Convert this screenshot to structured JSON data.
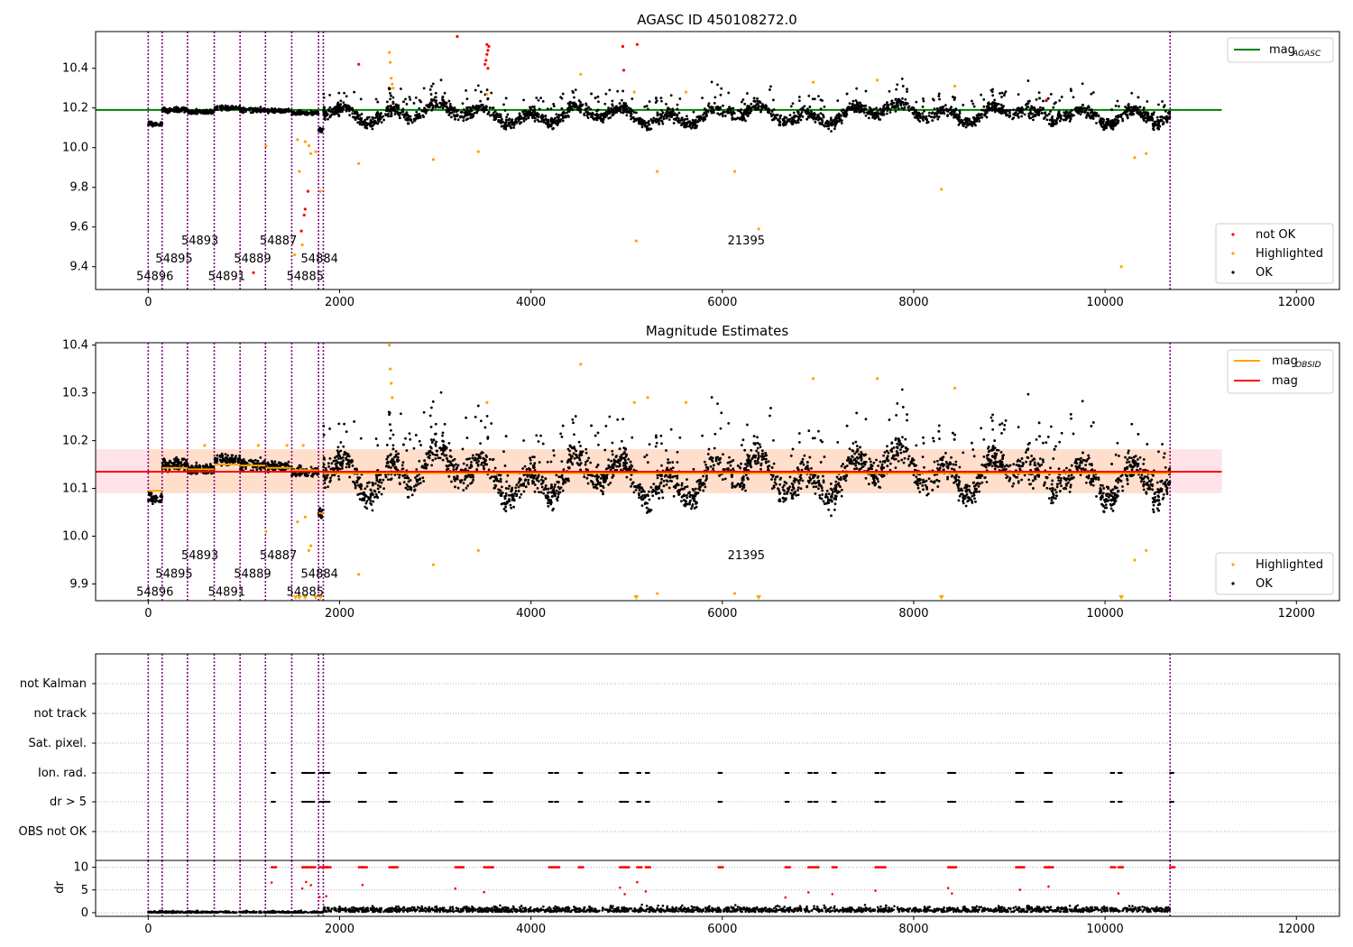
{
  "chart_data": [
    {
      "type": "scatter",
      "title": "AGASC ID 450108272.0",
      "xlim": [
        -550,
        12450
      ],
      "ylim": [
        9.285,
        10.585
      ],
      "xticks": [
        0,
        2000,
        4000,
        6000,
        8000,
        10000,
        12000
      ],
      "yticks": [
        9.4,
        9.6,
        9.8,
        10.0,
        10.2,
        10.4
      ],
      "hlines": [
        {
          "name": "mag_AGASC",
          "y": 10.19,
          "x_end": 11220,
          "color": "#008000"
        }
      ],
      "obs_boundaries": [
        0,
        145,
        410,
        690,
        960,
        1225,
        1500,
        1780,
        1830,
        10680
      ],
      "obsid_labels": [
        {
          "text": "54896",
          "x": 70,
          "y": 9.35
        },
        {
          "text": "54895",
          "x": 270,
          "y": 9.44
        },
        {
          "text": "54893",
          "x": 540,
          "y": 9.53
        },
        {
          "text": "54891",
          "x": 820,
          "y": 9.35
        },
        {
          "text": "54889",
          "x": 1090,
          "y": 9.44
        },
        {
          "text": "54887",
          "x": 1360,
          "y": 9.53
        },
        {
          "text": "54885",
          "x": 1640,
          "y": 9.35
        },
        {
          "text": "54884",
          "x": 1790,
          "y": 9.44
        },
        {
          "text": "21395",
          "x": 6250,
          "y": 9.53
        }
      ],
      "not_ok_points": [
        [
          1100,
          9.37
        ],
        [
          1600,
          9.58
        ],
        [
          1630,
          9.66
        ],
        [
          1640,
          9.69
        ],
        [
          1670,
          9.78
        ],
        [
          2200,
          10.42
        ],
        [
          3230,
          10.56
        ],
        [
          3520,
          10.42
        ],
        [
          3530,
          10.44
        ],
        [
          3540,
          10.47
        ],
        [
          3550,
          10.49
        ],
        [
          3560,
          10.51
        ],
        [
          3540,
          10.52
        ],
        [
          3550,
          10.4
        ],
        [
          4960,
          10.51
        ],
        [
          4970,
          10.39
        ],
        [
          5110,
          10.52
        ],
        [
          9390,
          10.24
        ]
      ],
      "highlighted_points": [
        [
          1230,
          10.01
        ],
        [
          1530,
          9.46
        ],
        [
          1560,
          10.04
        ],
        [
          1580,
          9.88
        ],
        [
          1610,
          9.51
        ],
        [
          1640,
          10.03
        ],
        [
          1680,
          10.01
        ],
        [
          1700,
          9.97
        ],
        [
          1750,
          9.98
        ],
        [
          1800,
          9.78
        ],
        [
          2200,
          9.92
        ],
        [
          2520,
          10.48
        ],
        [
          2530,
          10.43
        ],
        [
          2540,
          10.35
        ],
        [
          2550,
          10.32
        ],
        [
          2560,
          10.3
        ],
        [
          2980,
          9.94
        ],
        [
          3450,
          9.98
        ],
        [
          3540,
          10.27
        ],
        [
          4520,
          10.37
        ],
        [
          5100,
          9.53
        ],
        [
          5080,
          10.28
        ],
        [
          5320,
          9.88
        ],
        [
          5620,
          10.28
        ],
        [
          6130,
          9.88
        ],
        [
          6380,
          9.59
        ],
        [
          6950,
          10.33
        ],
        [
          7620,
          10.34
        ],
        [
          8290,
          9.79
        ],
        [
          8430,
          10.31
        ],
        [
          10170,
          9.4
        ],
        [
          10310,
          9.95
        ],
        [
          10430,
          9.97
        ]
      ],
      "ok_points": "generated",
      "legend_lines": [
        "mag_AGASC"
      ],
      "legend_points": [
        "not OK",
        "Highlighted",
        "OK"
      ],
      "colors": {
        "ok": "#000000",
        "highlighted": "#ffa500",
        "not_ok": "#ff0000",
        "line": "#008000",
        "boundary": "#800080"
      }
    },
    {
      "type": "scatter",
      "title": "Magnitude Estimates",
      "xlim": [
        -550,
        12450
      ],
      "ylim": [
        9.865,
        10.405
      ],
      "xticks": [
        0,
        2000,
        4000,
        6000,
        8000,
        10000,
        12000
      ],
      "yticks": [
        9.9,
        10.0,
        10.1,
        10.2,
        10.3,
        10.4
      ],
      "hlines": [
        {
          "name": "mag",
          "y": 10.135,
          "x_end": 11220,
          "color": "#ff0000"
        }
      ],
      "bands": [
        {
          "y0": 10.09,
          "y1": 10.182,
          "color": "#ffc0cb"
        },
        {
          "y0": 10.09,
          "y1": 10.182,
          "color": "#ffdab9"
        }
      ],
      "obs_mags": [
        {
          "x0": 0,
          "x1": 145,
          "y": 10.095
        },
        {
          "x0": 145,
          "x1": 410,
          "y": 10.143
        },
        {
          "x0": 410,
          "x1": 690,
          "y": 10.14
        },
        {
          "x0": 690,
          "x1": 960,
          "y": 10.15
        },
        {
          "x0": 960,
          "x1": 1225,
          "y": 10.148
        },
        {
          "x0": 1225,
          "x1": 1500,
          "y": 10.143
        },
        {
          "x0": 1500,
          "x1": 1780,
          "y": 10.138
        },
        {
          "x0": 1780,
          "x1": 1830,
          "y": 10.048
        },
        {
          "x0": 1830,
          "x1": 10680,
          "y": 10.132
        }
      ],
      "obs_boundaries": [
        0,
        145,
        410,
        690,
        960,
        1225,
        1500,
        1780,
        1830,
        10680
      ],
      "obsid_labels": [
        {
          "text": "54896",
          "x": 70,
          "y": 9.883
        },
        {
          "text": "54895",
          "x": 270,
          "y": 9.921
        },
        {
          "text": "54893",
          "x": 540,
          "y": 9.959
        },
        {
          "text": "54891",
          "x": 820,
          "y": 9.883
        },
        {
          "text": "54889",
          "x": 1090,
          "y": 9.921
        },
        {
          "text": "54887",
          "x": 1360,
          "y": 9.959
        },
        {
          "text": "54885",
          "x": 1640,
          "y": 9.883
        },
        {
          "text": "54884",
          "x": 1790,
          "y": 9.921
        },
        {
          "text": "21395",
          "x": 6250,
          "y": 9.959
        }
      ],
      "highlighted_points": [
        [
          1230,
          10.01
        ],
        [
          1560,
          10.03
        ],
        [
          1640,
          10.04
        ],
        [
          1680,
          9.97
        ],
        [
          1700,
          9.98
        ],
        [
          2200,
          9.92
        ],
        [
          2520,
          10.4
        ],
        [
          2530,
          10.35
        ],
        [
          2540,
          10.32
        ],
        [
          2550,
          10.29
        ],
        [
          2980,
          9.94
        ],
        [
          3450,
          9.97
        ],
        [
          3540,
          10.28
        ],
        [
          4520,
          10.36
        ],
        [
          5080,
          10.28
        ],
        [
          5220,
          10.29
        ],
        [
          5320,
          9.88
        ],
        [
          5620,
          10.28
        ],
        [
          6130,
          9.88
        ],
        [
          6950,
          10.33
        ],
        [
          7620,
          10.33
        ],
        [
          8430,
          10.31
        ],
        [
          10310,
          9.95
        ],
        [
          10430,
          9.97
        ],
        [
          590,
          10.19
        ],
        [
          1150,
          10.19
        ],
        [
          1450,
          10.19
        ],
        [
          1620,
          10.19
        ]
      ],
      "clipped_low_x": [
        1540,
        1580,
        1640,
        1750,
        1800,
        5100,
        6380,
        8290,
        10170
      ],
      "ok_points": "generated",
      "legend_lines": [
        "mag_OBSID",
        "mag"
      ],
      "legend_points": [
        "Highlighted",
        "OK"
      ],
      "colors": {
        "ok": "#000000",
        "highlighted": "#ffa500",
        "mag": "#ff0000",
        "mag_obsid": "#ffa500",
        "boundary": "#800080"
      }
    },
    {
      "type": "scatter",
      "title": "",
      "xlim": [
        -550,
        12450
      ],
      "categories": [
        "not Kalman",
        "not track",
        "Sat. pixel.",
        "Ion. rad.",
        "dr > 5",
        "OBS not OK"
      ],
      "flag_x": [
        1290,
        1610,
        1650,
        1700,
        1790,
        1830,
        1860,
        2200,
        2240,
        2520,
        2560,
        3210,
        3250,
        3510,
        3560,
        4190,
        4250,
        4500,
        4930,
        4980,
        5110,
        5200,
        5960,
        6660,
        6900,
        6960,
        7150,
        7600,
        7660,
        8360,
        8400,
        9070,
        9110,
        9370,
        9410,
        10060,
        10140,
        10680
      ],
      "dr_ylim": [
        -0.8,
        11.5
      ],
      "dr_yticks": [
        0,
        5,
        10
      ],
      "ylabel": "dr",
      "obs_boundaries": [
        0,
        145,
        410,
        690,
        960,
        1225,
        1500,
        1780,
        1830,
        10680
      ],
      "colors": {
        "ok": "#000000",
        "flag": "#ff0000",
        "boundary": "#800080"
      }
    }
  ],
  "tick_labels": [
    "0",
    "2000",
    "4000",
    "6000",
    "8000",
    "10000",
    "12000"
  ],
  "legend1": {
    "line": "mag",
    "line_sub": "AGASC",
    "items": [
      "not OK",
      "Highlighted",
      "OK"
    ]
  },
  "legend2": {
    "line1": "mag",
    "line1_sub": "OBSID",
    "line2": "mag",
    "items": [
      "Highlighted",
      "OK"
    ]
  },
  "titles": {
    "top": "AGASC ID 450108272.0",
    "mid": "Magnitude Estimates"
  },
  "dr_label": "dr"
}
